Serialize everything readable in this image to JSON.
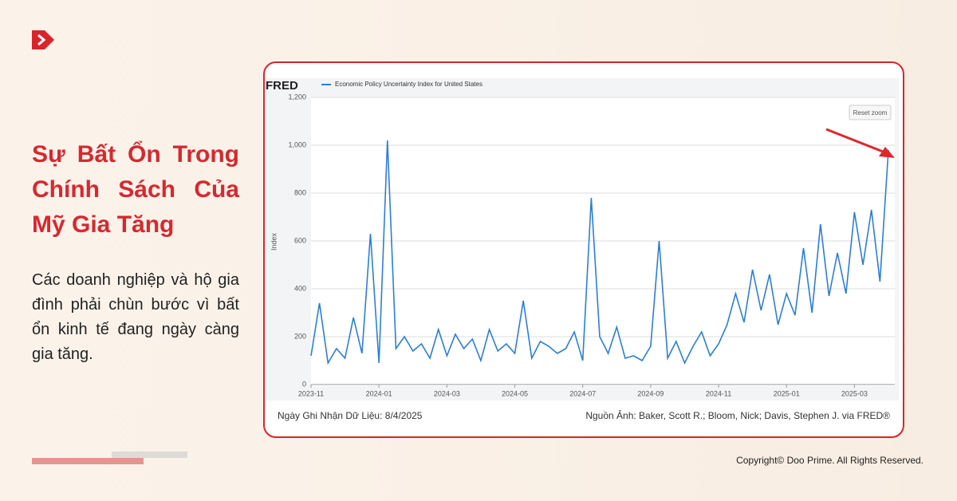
{
  "headline": "Sự Bất Ổn Trong Chính Sách Của Mỹ Gia Tăng",
  "body": "Các doanh nghiệp và hộ gia đình phải chùn bước vì bất ổn kinh tế đang ngày càng gia tăng.",
  "fred_logo": "FRED",
  "reset_zoom": "Reset zoom",
  "chart_data": {
    "type": "line",
    "ylabel": "Index",
    "categories": [
      "2023-11",
      null,
      null,
      null,
      null,
      null,
      null,
      null,
      "2024-01",
      null,
      null,
      null,
      null,
      null,
      null,
      null,
      "2024-03",
      null,
      null,
      null,
      null,
      null,
      null,
      null,
      "2024-05",
      null,
      null,
      null,
      null,
      null,
      null,
      null,
      "2024-07",
      null,
      null,
      null,
      null,
      null,
      null,
      null,
      "2024-09",
      null,
      null,
      null,
      null,
      null,
      null,
      null,
      "2024-11",
      null,
      null,
      null,
      null,
      null,
      null,
      null,
      "2025-01",
      null,
      null,
      null,
      null,
      null,
      null,
      null,
      "2025-03",
      null,
      null,
      null,
      null
    ],
    "series": [
      {
        "name": "Economic Policy Uncertainty Index for United States",
        "color": "#2b7fd6",
        "values": [
          120,
          340,
          90,
          150,
          110,
          280,
          130,
          630,
          90,
          1020,
          150,
          200,
          140,
          170,
          110,
          230,
          120,
          210,
          150,
          190,
          100,
          230,
          140,
          170,
          130,
          350,
          110,
          180,
          160,
          130,
          150,
          220,
          100,
          780,
          200,
          130,
          240,
          110,
          120,
          100,
          160,
          600,
          110,
          180,
          90,
          160,
          220,
          120,
          170,
          250,
          380,
          260,
          480,
          310,
          460,
          250,
          380,
          290,
          570,
          300,
          670,
          370,
          550,
          380,
          720,
          500,
          730,
          430,
          980
        ]
      }
    ],
    "ylim": [
      0,
      1200
    ],
    "yticks": [
      0,
      200,
      400,
      600,
      800,
      {
        "value": 1000,
        "label": "1,000"
      },
      {
        "value": 1200,
        "label": "1,200"
      }
    ],
    "grid": true
  },
  "source_left": "Ngày Ghi Nhận Dữ Liệu: 8/4/2025",
  "source_right": "Nguồn Ảnh: Baker, Scott R.; Bloom, Nick; Davis, Stephen J. via FRED®",
  "copyright": "Copyright© Doo Prime. All Rights Reserved."
}
